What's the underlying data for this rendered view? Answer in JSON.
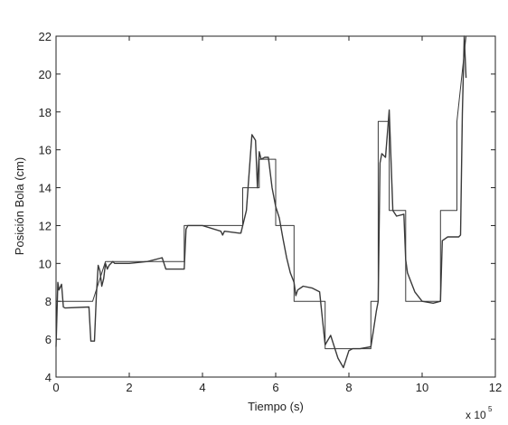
{
  "chart_data": {
    "type": "line",
    "xlabel": "Tiempo (s)",
    "ylabel": "Posición Bola (cm)",
    "x_multiplier": "x 10",
    "x_multiplier_exponent": "5",
    "xlim": [
      0,
      12
    ],
    "ylim": [
      4,
      22
    ],
    "grid": false,
    "x_ticks": [
      0,
      2,
      4,
      6,
      8,
      10,
      12
    ],
    "y_ticks": [
      4,
      6,
      8,
      10,
      12,
      14,
      16,
      18,
      20,
      22
    ],
    "line_color": "#3a3a3a",
    "series": [
      {
        "style": "step",
        "x": [
          0,
          0.1,
          1.0,
          1.35,
          1.45,
          3.5,
          3.5,
          5.1,
          5.1,
          5.55,
          5.55,
          6.0,
          6.0,
          6.5,
          6.5,
          7.35,
          7.35,
          8.6,
          8.6,
          8.8,
          8.8,
          9.1,
          9.1,
          9.55,
          9.55,
          10.5,
          10.5,
          10.95,
          10.95,
          11.2
        ],
        "y": [
          8,
          8,
          8,
          10.1,
          10.1,
          10.1,
          12,
          12,
          14,
          14,
          15.5,
          15.5,
          12,
          12,
          8,
          8,
          5.5,
          5.5,
          8,
          8,
          17.5,
          17.5,
          12.8,
          12.8,
          8,
          8,
          12.8,
          12.8,
          17.5,
          22
        ]
      },
      {
        "style": "line",
        "x": [
          0,
          0.05,
          0.08,
          0.15,
          0.2,
          0.25,
          0.9,
          0.95,
          1.05,
          1.1,
          1.15,
          1.2,
          1.25,
          1.3,
          1.35,
          1.4,
          1.45,
          1.5,
          1.55,
          1.6,
          2.0,
          2.5,
          2.9,
          3.0,
          3.5,
          3.55,
          3.6,
          4.0,
          4.5,
          4.55,
          4.6,
          5.0,
          5.05,
          5.2,
          5.35,
          5.45,
          5.5,
          5.55,
          5.6,
          5.7,
          5.8,
          5.9,
          6.0,
          6.1,
          6.2,
          6.3,
          6.4,
          6.5,
          6.55,
          6.6,
          6.75,
          7.0,
          7.2,
          7.35,
          7.5,
          7.7,
          7.85,
          8.0,
          8.1,
          8.3,
          8.6,
          8.65,
          8.75,
          8.8,
          8.85,
          8.9,
          9.0,
          9.1,
          9.2,
          9.3,
          9.5,
          9.55,
          9.6,
          9.8,
          10.0,
          10.3,
          10.5,
          10.55,
          10.7,
          11.0,
          11.05,
          11.1,
          11.15,
          11.2
        ],
        "y": [
          5.6,
          9.0,
          8.6,
          8.9,
          7.7,
          7.65,
          7.7,
          5.9,
          5.9,
          8.3,
          9.9,
          9.6,
          8.8,
          9.2,
          10.0,
          9.7,
          9.9,
          10.0,
          10.1,
          10.0,
          10.0,
          10.1,
          10.3,
          9.7,
          9.7,
          11.8,
          12.0,
          12.0,
          11.7,
          11.5,
          11.7,
          11.6,
          11.6,
          12.8,
          16.8,
          16.5,
          14.0,
          15.9,
          15.5,
          15.6,
          15.6,
          14.0,
          13.0,
          12.4,
          11.3,
          10.3,
          9.5,
          9.0,
          8.3,
          8.6,
          8.8,
          8.7,
          8.5,
          5.7,
          6.2,
          5.0,
          4.5,
          5.4,
          5.5,
          5.5,
          5.6,
          6.2,
          7.5,
          8.0,
          15.3,
          15.8,
          15.6,
          18.1,
          12.8,
          12.5,
          12.6,
          10.2,
          9.5,
          8.5,
          8.0,
          7.9,
          8.0,
          11.2,
          11.4,
          11.4,
          11.5,
          17.9,
          22.0,
          19.8
        ]
      }
    ]
  }
}
